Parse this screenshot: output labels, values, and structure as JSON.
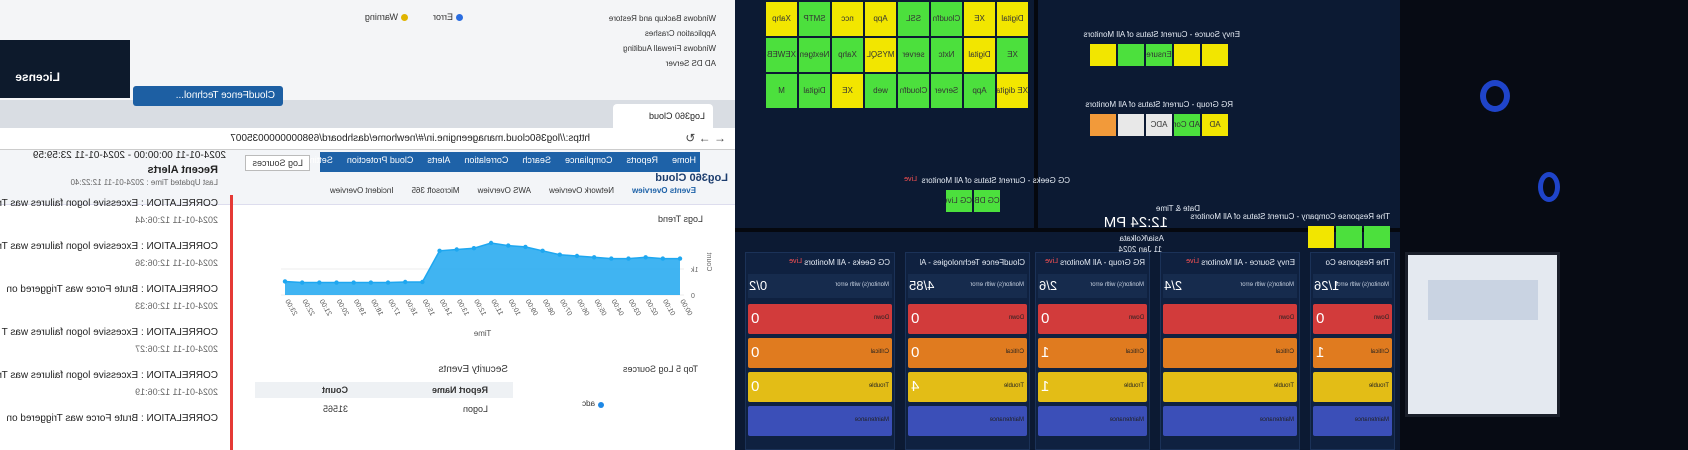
{
  "back_screen": {
    "items": [
      "Windows Backup and Restore",
      "Application Crashes",
      "Windows Firewall Auditing",
      "AD DS Server"
    ],
    "legend": [
      "Error",
      "Warning"
    ]
  },
  "top_bar": {
    "org": "CloudFence Technol...",
    "license": "License"
  },
  "browser": {
    "tab": "Log360 Cloud",
    "url": "https://log360cloud.manageengine.in/#/newhome/dashboard/6980000000035007"
  },
  "log360": {
    "brand": "Log360 Cloud",
    "nav": [
      "Home",
      "Reports",
      "Compliance",
      "Search",
      "Correlation",
      "Alerts",
      "Cloud Protection",
      "Settings"
    ],
    "subnav": [
      "Events Overview",
      "Network Overview",
      "AWS Overview",
      "Microsoft 365",
      "Incident Overview"
    ],
    "log_sources": "Log Sources",
    "date_range": "2024-01-11 00:00:00 - 2024-01-11 23:59:59",
    "logs_trend": {
      "type": "area",
      "title": "Logs Trend",
      "x_label": "Time",
      "y_label": "Count",
      "categories": [
        "00:00",
        "01:00",
        "02:00",
        "03:00",
        "04:00",
        "05:00",
        "06:00",
        "07:00",
        "08:00",
        "09:00",
        "10:00",
        "11:00",
        "12:00",
        "13:00",
        "14:00",
        "15:00",
        "16:00",
        "17:00",
        "18:00",
        "19:00",
        "20:00",
        "21:00",
        "22:00",
        "23:00"
      ],
      "values": [
        1400,
        1400,
        1450,
        1400,
        1400,
        1450,
        1500,
        1550,
        1700,
        1850,
        1900,
        2000,
        1800,
        1750,
        1700,
        500,
        500,
        480,
        480,
        480,
        480,
        480,
        480,
        520
      ],
      "ylim": [
        0,
        2500
      ],
      "yticks": [
        0,
        {
          "value": 1000,
          "label": "1k"
        }
      ],
      "color": "#1ea7f0"
    },
    "recent_alerts": {
      "title": "Recent Alerts",
      "updated": "Last Updated Time : 2024-01-11 12:22:40",
      "items": [
        {
          "text": "CORRELATION : Excessive logon failures was Tr",
          "time": "2024-01-11 12:06:44"
        },
        {
          "text": "CORRELATION : Excessive logon failures was Tr",
          "time": "2024-01-11 12:06:36"
        },
        {
          "text": "CORRELATION : Brute Force was Triggered on",
          "time": "2024-01-11 12:06:33"
        },
        {
          "text": "CORRELATION : Excessive logon failures was T",
          "time": "2024-01-11 12:06:27"
        },
        {
          "text": "CORRELATION : Excessive logon failures was Tr",
          "time": "2024-01-11 12:06:19"
        },
        {
          "text": "CORRELATION : Brute Force was Triggered on"
        }
      ]
    },
    "top_log_sources": {
      "title": "Top 5 Log Sources",
      "legend": [
        "adc"
      ]
    },
    "security_events": {
      "title": "Security Events",
      "columns": [
        "Report Name",
        "Count"
      ],
      "rows": [
        [
          "Logon",
          "31565"
        ]
      ]
    }
  },
  "wall": {
    "main_grid": [
      {
        "label": "Digital",
        "color": "#f2e600"
      },
      {
        "label": "XE",
        "color": "#f2e600"
      },
      {
        "label": "Cloudfn",
        "color": "#4ce03d"
      },
      {
        "label": "SSL",
        "color": "#4ce03d"
      },
      {
        "label": "App",
        "color": "#f2e600"
      },
      {
        "label": "ncc",
        "color": "#f2e600"
      },
      {
        "label": "SMTP",
        "color": "#4ce03d"
      },
      {
        "label": "Xahp",
        "color": "#f2e600"
      },
      {
        "label": "XE",
        "color": "#4ce03d"
      },
      {
        "label": "Digital",
        "color": "#f2e600"
      },
      {
        "label": "Nxtc",
        "color": "#4ce03d"
      },
      {
        "label": "server",
        "color": "#4ce03d"
      },
      {
        "label": "MYSQL",
        "color": "#f2e600"
      },
      {
        "label": "Xahp",
        "color": "#4ce03d"
      },
      {
        "label": "Nextgen",
        "color": "#4ce03d"
      },
      {
        "label": "XEWEB",
        "color": "#4ce03d"
      },
      {
        "label": "XE digital",
        "color": "#f2e600"
      },
      {
        "label": "App",
        "color": "#4ce03d"
      },
      {
        "label": "Server",
        "color": "#4ce03d"
      },
      {
        "label": "Cloudfn",
        "color": "#4ce03d"
      },
      {
        "label": "web",
        "color": "#4ce03d"
      },
      {
        "label": "XE",
        "color": "#f2e600"
      },
      {
        "label": "Digital",
        "color": "#4ce03d"
      },
      {
        "label": "M",
        "color": "#4ce03d"
      }
    ],
    "status_panels": [
      {
        "title": "CG Geeks - Current Status of All Monitors",
        "live": "Live",
        "tiles": [
          {
            "label": "CG DB",
            "color": "#4ce03d"
          },
          {
            "label": "CG Live",
            "color": "#4ce03d"
          }
        ]
      },
      {
        "title": "Envy Source - Current Status of All Monitors",
        "tiles": [
          {
            "color": "#f2e600"
          },
          {
            "color": "#f2e600"
          },
          {
            "label": "Ensure",
            "color": "#4ce03d"
          },
          {
            "color": "#4ce03d"
          },
          {
            "color": "#f2e600"
          }
        ]
      },
      {
        "title": "RG Group - Current Status of All Monitors",
        "tiles": [
          {
            "label": "AD",
            "color": "#f2e600"
          },
          {
            "label": "AD Conn",
            "color": "#4ce03d"
          },
          {
            "label": "ADC",
            "color": "#e8e8e8"
          },
          {
            "color": "#e8e8e8"
          },
          {
            "color": "#f29a3a"
          }
        ]
      },
      {
        "title": "The Response Company - Current Status of All Monitors",
        "tiles": [
          {
            "color": "#4ce03d"
          },
          {
            "color": "#4ce03d"
          },
          {
            "color": "#f2e600"
          }
        ]
      }
    ],
    "clock": {
      "title": "Date & Time",
      "time": "12:24 PM",
      "zone": "Asia/Kolkata",
      "date": "11 Jan 2024"
    },
    "cards": [
      {
        "title": "The Response Company - All ...",
        "error_label": "Monitor(s) with error",
        "errors": "1/26",
        "rows": [
          {
            "label": "Down",
            "value": "0"
          },
          {
            "label": "Critical",
            "value": "1"
          },
          {
            "label": "Trouble"
          },
          {
            "label": "Maintenance"
          }
        ]
      },
      {
        "title": "Envy Source - All Monitors",
        "live": "Live",
        "error_label": "Monitor(s) with error",
        "errors": "2/4",
        "rows": [
          {
            "label": "Down"
          },
          {
            "label": "Critical"
          },
          {
            "label": "Trouble"
          },
          {
            "label": "Maintenance"
          }
        ]
      },
      {
        "title": "RG Group - All Monitors",
        "live": "Live",
        "error_label": "Monitor(s) with error",
        "errors": "2/6",
        "rows": [
          {
            "label": "Down",
            "value": "0"
          },
          {
            "label": "Critical",
            "value": "1"
          },
          {
            "label": "Trouble",
            "value": "1"
          },
          {
            "label": "Maintenance"
          }
        ]
      },
      {
        "title": "CloudFence Technologies - All ...",
        "error_label": "Monitor(s) with error",
        "errors": "4/85",
        "rows": [
          {
            "label": "Down",
            "value": "0"
          },
          {
            "label": "Critical",
            "value": "0"
          },
          {
            "label": "Trouble",
            "value": "4"
          },
          {
            "label": "Maintenance"
          }
        ]
      },
      {
        "title": "CG Geeks - All Monitors",
        "live": "Live",
        "error_label": "Monitor(s) with error",
        "errors": "0/2",
        "rows": [
          {
            "label": "Down",
            "value": "0"
          },
          {
            "label": "Critical",
            "value": "0"
          },
          {
            "label": "Trouble",
            "value": "0"
          },
          {
            "label": "Maintenance"
          }
        ]
      }
    ]
  }
}
